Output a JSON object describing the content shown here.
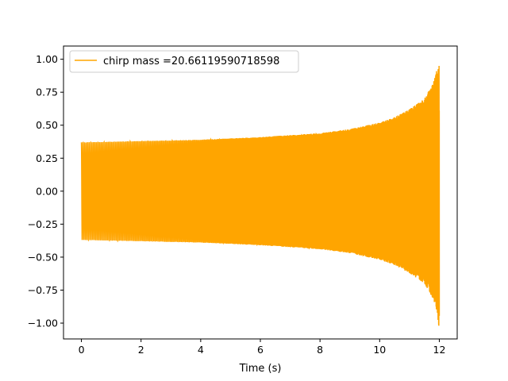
{
  "chart_data": {
    "type": "line",
    "xlabel": "Time (s)",
    "ylabel": "",
    "title": "",
    "xlim": [
      -0.6,
      12.6
    ],
    "ylim": [
      -1.12,
      1.1
    ],
    "x_ticks": [
      0,
      2,
      4,
      6,
      8,
      10,
      12
    ],
    "x_tick_labels": [
      "0",
      "2",
      "4",
      "6",
      "8",
      "10",
      "12"
    ],
    "y_ticks": [
      1.0,
      0.75,
      0.5,
      0.25,
      0.0,
      -0.25,
      -0.5,
      -0.75,
      -1.0
    ],
    "y_tick_labels": [
      "1.00",
      "0.75",
      "0.50",
      "0.25",
      "0.00",
      "−0.25",
      "−0.50",
      "−0.75",
      "−1.00"
    ],
    "grid": false,
    "legend": {
      "position": "upper-left"
    },
    "series": [
      {
        "name": "chirp mass =20.66119590718598",
        "color": "#FFA500",
        "x": [
          0,
          2,
          4,
          6,
          8,
          9,
          10,
          10.5,
          11,
          11.5,
          11.8,
          11.95,
          12.0
        ],
        "upper_envelope": [
          0.37,
          0.38,
          0.39,
          0.41,
          0.44,
          0.47,
          0.52,
          0.56,
          0.62,
          0.7,
          0.82,
          0.95,
          1.0
        ],
        "lower_envelope": [
          -0.37,
          -0.38,
          -0.39,
          -0.41,
          -0.44,
          -0.47,
          -0.52,
          -0.56,
          -0.62,
          -0.7,
          -0.82,
          -0.98,
          -1.04
        ]
      }
    ]
  }
}
